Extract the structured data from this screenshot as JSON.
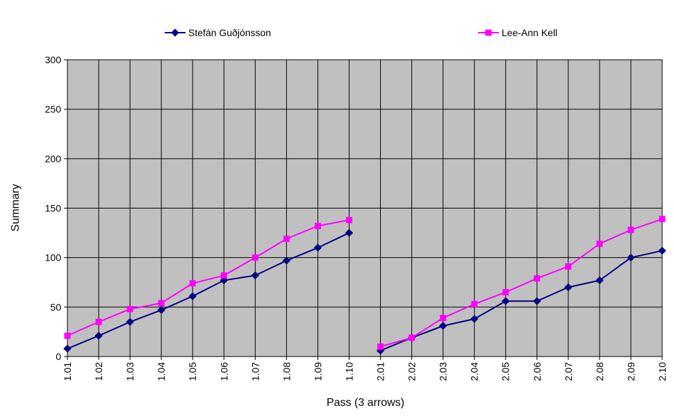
{
  "chart_data": {
    "type": "line",
    "title": "",
    "xlabel": "Pass (3 arrows)",
    "ylabel": "Summary",
    "ylim": [
      0,
      300
    ],
    "yticks": [
      0,
      50,
      100,
      150,
      200,
      250,
      300
    ],
    "grid": true,
    "legend_position": "top",
    "plot_background": "#c0c0c0",
    "categories": [
      "1.01",
      "1.02",
      "1.03",
      "1.04",
      "1.05",
      "1.06",
      "1.07",
      "1.08",
      "1.09",
      "1.10",
      "2.01",
      "2.02",
      "2.03",
      "2.04",
      "2.05",
      "2.06",
      "2.07",
      "2.08",
      "2.09",
      "2.10"
    ],
    "series": [
      {
        "name": "Stefán Guðjónsson",
        "color": "#000080",
        "marker": "diamond",
        "values": [
          8,
          21,
          35,
          47,
          61,
          77,
          82,
          97,
          110,
          125,
          6,
          19,
          31,
          38,
          56,
          56,
          70,
          77,
          100,
          107
        ]
      },
      {
        "name": "Lee-Ann Kell",
        "color": "#ff00ff",
        "marker": "square",
        "values": [
          21,
          35,
          48,
          54,
          74,
          82,
          100,
          119,
          132,
          138,
          10,
          19,
          39,
          53,
          65,
          79,
          91,
          114,
          128,
          139
        ]
      }
    ]
  }
}
